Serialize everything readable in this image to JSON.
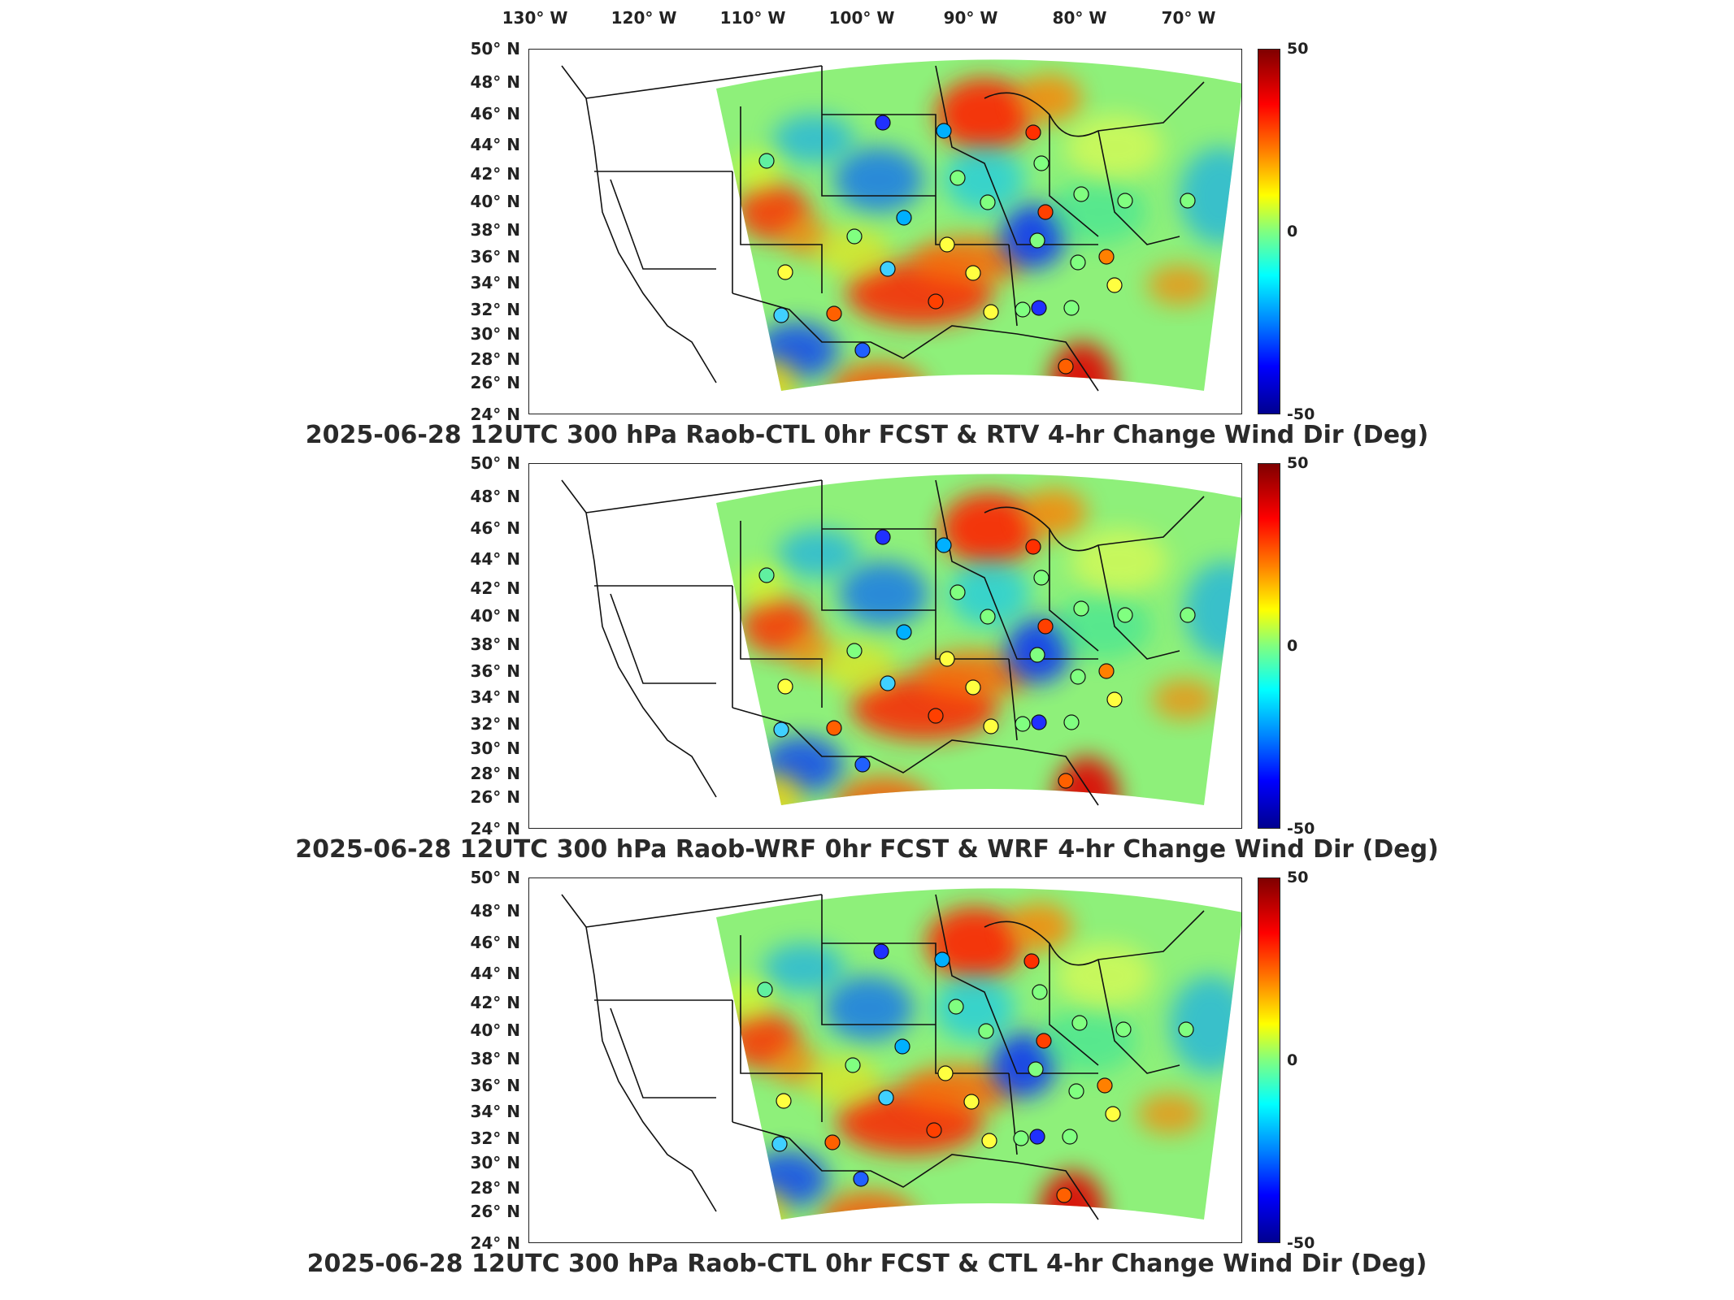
{
  "longitude_labels": [
    "130° W",
    "120° W",
    "110° W",
    "100° W",
    "90° W",
    "80° W",
    "70° W"
  ],
  "latitude_labels": [
    "50° N",
    "48° N",
    "46° N",
    "44° N",
    "42° N",
    "40° N",
    "38° N",
    "36° N",
    "34° N",
    "32° N",
    "30° N",
    "28° N",
    "26° N",
    "24° N"
  ],
  "colorbar": {
    "max_label": "50",
    "mid_label": "0",
    "min_label": "-50",
    "colors": [
      "#7f0000",
      "#ff0000",
      "#ff8000",
      "#ffff00",
      "#80ff80",
      "#00ffff",
      "#0080ff",
      "#0000ff",
      "#00008f"
    ]
  },
  "panels": [
    {
      "title": "2025-06-28 12UTC 300 hPa Raob-CTL 0hr FCST & RTV 4-hr Change Wind Dir (Deg)"
    },
    {
      "title": "2025-06-28 12UTC 300 hPa Raob-WRF 0hr FCST & WRF 4-hr Change Wind Dir (Deg)"
    },
    {
      "title": "2025-06-28 12UTC 300 hPa Raob-CTL 0hr FCST & CTL 4-hr Change Wind Dir (Deg)"
    }
  ]
}
